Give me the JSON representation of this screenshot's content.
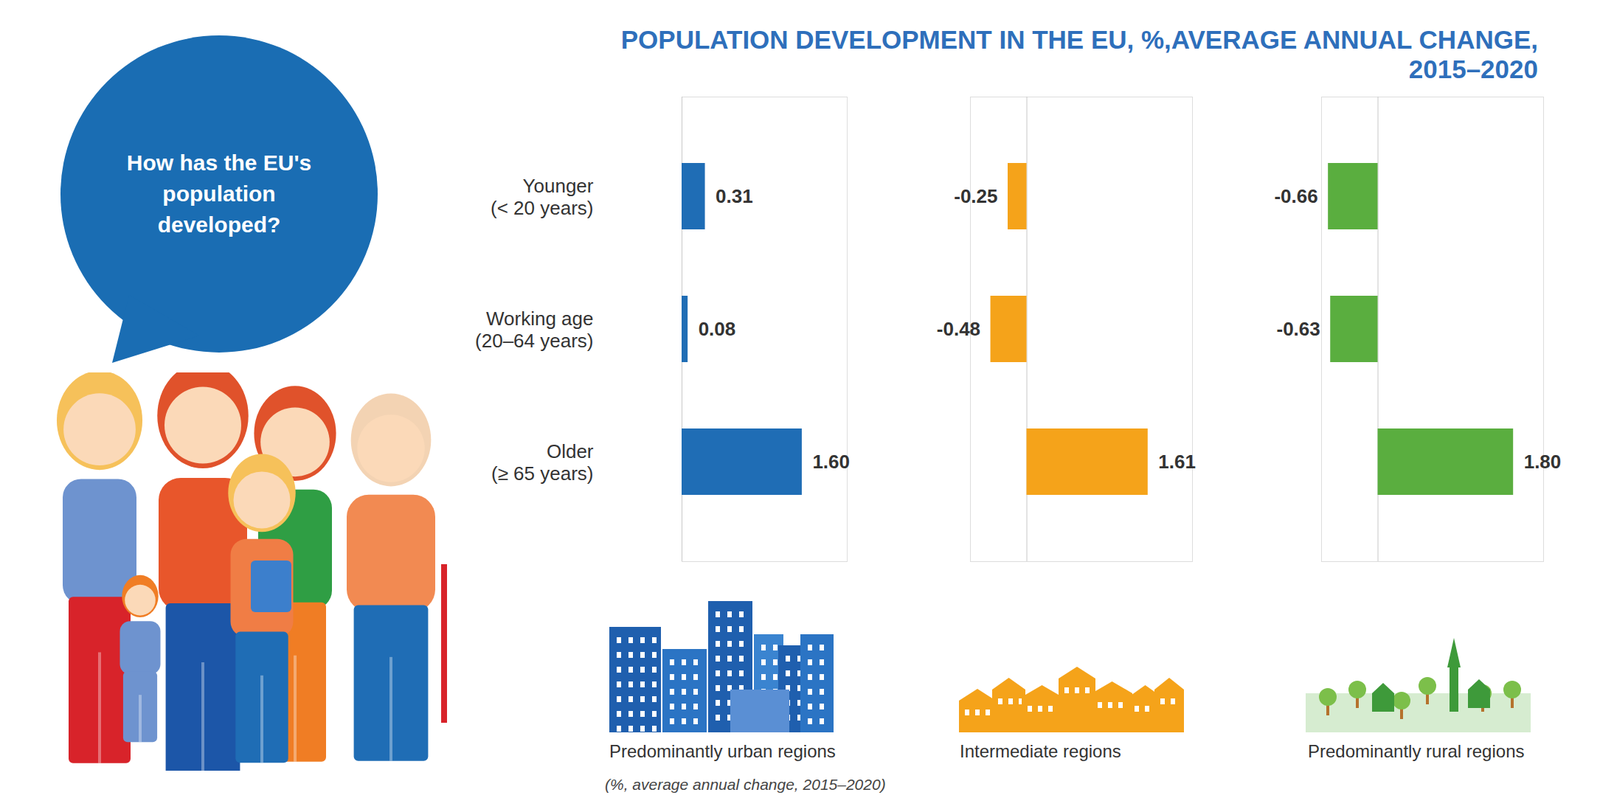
{
  "title": "POPULATION DEVELOPMENT IN THE EU, %,AVERAGE ANNUAL CHANGE,\n2015–2020",
  "question": "How has the EU's\npopulation\ndeveloped?",
  "note": "(%, average annual change, 2015–2020)",
  "chart_data": [
    {
      "type": "bar",
      "orientation": "horizontal",
      "title": "Predominantly urban regions",
      "categories": [
        "Younger\n(< 20 years)",
        "Working age\n(20–64 years)",
        "Older\n(≥ 65 years)"
      ],
      "values": [
        0.31,
        0.08,
        1.6
      ],
      "value_labels": [
        "0.31",
        "0.08",
        "1.60"
      ],
      "color": "#1f6db5",
      "xlim": [
        0,
        2.2
      ],
      "xticks": [],
      "grid": false,
      "data_labels": true,
      "tick_labels": "y"
    },
    {
      "type": "bar",
      "orientation": "horizontal",
      "title": "Intermediate regions",
      "categories": [
        "Younger\n(< 20 years)",
        "Working age\n(20–64 years)",
        "Older\n(≥ 65 years)"
      ],
      "values": [
        -0.25,
        -0.48,
        1.61
      ],
      "value_labels": [
        "-0.25",
        "-0.48",
        "1.61"
      ],
      "color": "#f5a31a",
      "xlim": [
        -0.75,
        2.2
      ],
      "xticks": [],
      "grid": false,
      "data_labels": true,
      "tick_labels": false
    },
    {
      "type": "bar",
      "orientation": "horizontal",
      "title": "Predominantly rural regions",
      "categories": [
        "Younger\n(< 20 years)",
        "Working age\n(20–64 years)",
        "Older\n(≥ 65 years)"
      ],
      "values": [
        -0.66,
        -0.63,
        1.8
      ],
      "value_labels": [
        "-0.66",
        "-0.63",
        "1.80"
      ],
      "color": "#5aae3f",
      "xlim": [
        -0.75,
        2.2
      ],
      "xticks": [],
      "grid": false,
      "data_labels": true,
      "tick_labels": false
    }
  ]
}
